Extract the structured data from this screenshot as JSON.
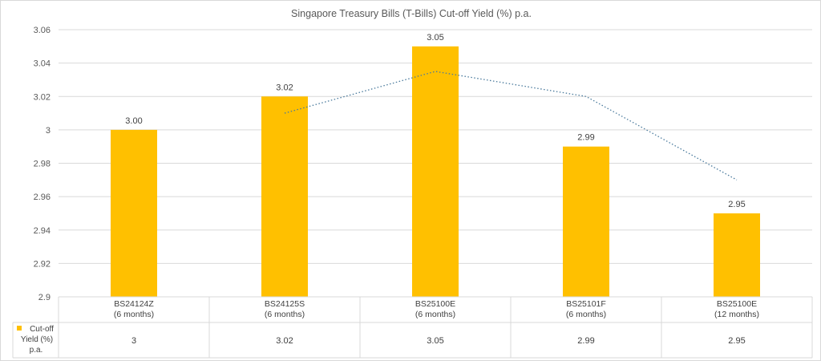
{
  "chart_data": {
    "type": "bar",
    "title": "Singapore Treasury Bills (T-Bills) Cut-off Yield (%) p.a.",
    "categories": [
      [
        "BS24124Z",
        "(6 months)"
      ],
      [
        "BS24125S",
        "(6 months)"
      ],
      [
        "BS25100E",
        "(6 months)"
      ],
      [
        "BS25101F",
        "(6 months)"
      ],
      [
        "BS25100E",
        "(12 months)"
      ]
    ],
    "series": [
      {
        "name": "Cut-off Yield (%) p.a.",
        "legend_lines": [
          "Cut-off",
          "Yield (%)",
          "p.a."
        ],
        "values": [
          3.0,
          3.02,
          3.05,
          2.99,
          2.95
        ],
        "data_labels": [
          "3.00",
          "3.02",
          "3.05",
          "2.99",
          "2.95"
        ],
        "table_values": [
          "3",
          "3.02",
          "3.05",
          "2.99",
          "2.95"
        ],
        "color": "#FFC000"
      }
    ],
    "trendline": {
      "kind": "2-period moving average",
      "values": [
        3.01,
        3.035,
        3.02,
        2.97
      ],
      "color": "#4A7A9C"
    },
    "ylim": [
      2.9,
      3.06
    ],
    "yticks": [
      "3.06",
      "3.04",
      "3.02",
      "3",
      "2.98",
      "2.96",
      "2.94",
      "2.92",
      "2.9"
    ],
    "ytick_values": [
      3.06,
      3.04,
      3.02,
      3.0,
      2.98,
      2.96,
      2.94,
      2.92,
      2.9
    ],
    "grid": true,
    "legend": "data-table",
    "xlabel": "",
    "ylabel": ""
  }
}
